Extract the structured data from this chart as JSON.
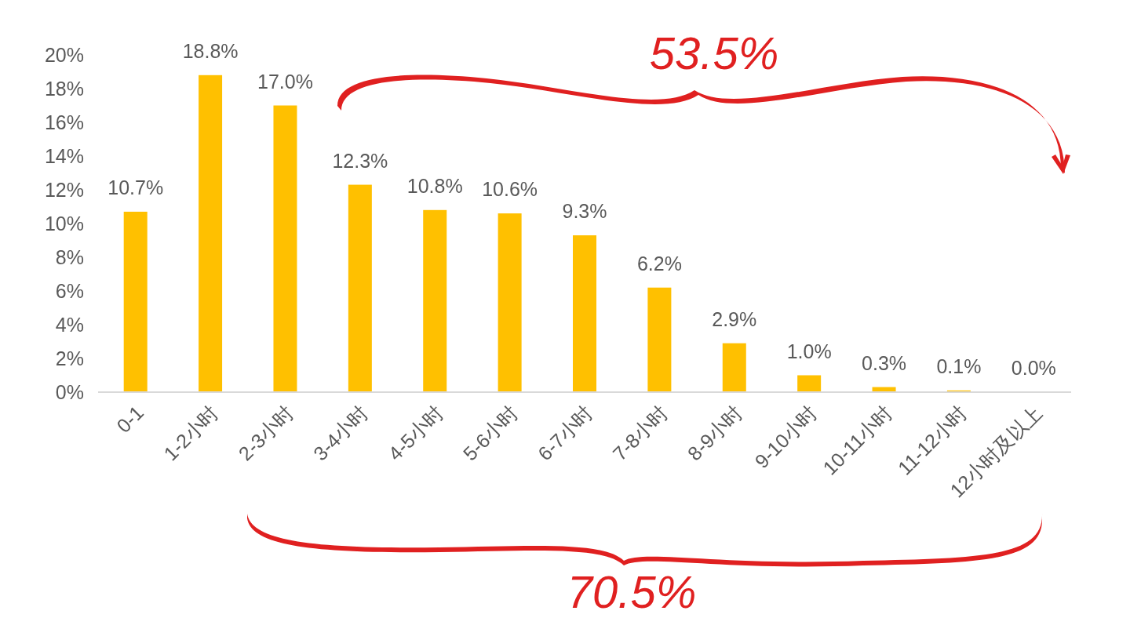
{
  "chart_data": {
    "type": "bar",
    "categories": [
      "0-1",
      "1-2小时",
      "2-3小时",
      "3-4小时",
      "4-5小时",
      "5-6小时",
      "6-7小时",
      "7-8小时",
      "8-9小时",
      "9-10小时",
      "10-11小时",
      "11-12小时",
      "12小时及以上"
    ],
    "values": [
      10.7,
      18.8,
      17.0,
      12.3,
      10.8,
      10.6,
      9.3,
      6.2,
      2.9,
      1.0,
      0.3,
      0.1,
      0.0
    ],
    "value_labels": [
      "10.7%",
      "18.8%",
      "17.0%",
      "12.3%",
      "10.8%",
      "10.6%",
      "9.3%",
      "6.2%",
      "2.9%",
      "1.0%",
      "0.3%",
      "0.1%",
      "0.0%"
    ],
    "color": "#ffc000",
    "ylim": [
      0,
      20
    ],
    "yticks": [
      {
        "value": 0,
        "label": "0%"
      },
      {
        "value": 2,
        "label": "2%"
      },
      {
        "value": 4,
        "label": "4%"
      },
      {
        "value": 6,
        "label": "6%"
      },
      {
        "value": 8,
        "label": "8%"
      },
      {
        "value": 10,
        "label": "10%"
      },
      {
        "value": 12,
        "label": "12%"
      },
      {
        "value": 14,
        "label": "14%"
      },
      {
        "value": 16,
        "label": "16%"
      },
      {
        "value": 18,
        "label": "18%"
      },
      {
        "value": 20,
        "label": "20%"
      }
    ],
    "annotations": [
      "53.5%",
      "70.5%"
    ]
  }
}
